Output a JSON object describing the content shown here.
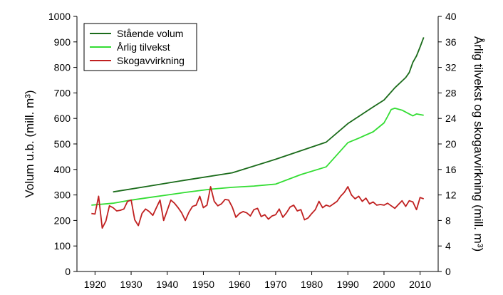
{
  "chart_data": {
    "type": "line",
    "title": "",
    "xlabel": "",
    "ylabel_left": "Volum u.b. (mill. m³)",
    "ylabel_right": "Årlig tilvekst og skogavvirkning (mill. m³)",
    "xlim": [
      1915,
      2015
    ],
    "ylim_left": [
      0,
      1000
    ],
    "ylim_right": [
      0,
      40
    ],
    "x_ticks": [
      1920,
      1930,
      1940,
      1950,
      1960,
      1970,
      1980,
      1990,
      2000,
      2010
    ],
    "y_ticks_left": [
      0,
      100,
      200,
      300,
      400,
      500,
      600,
      700,
      800,
      900,
      1000
    ],
    "y_ticks_right": [
      0,
      4,
      8,
      12,
      16,
      20,
      24,
      28,
      32,
      36,
      40
    ],
    "grid": false,
    "legend_position": "top-left",
    "series": [
      {
        "name": "Stående volum",
        "axis": "left",
        "color": "#1a6b1a",
        "points": [
          [
            1925,
            312
          ],
          [
            1935,
            335
          ],
          [
            1945,
            358
          ],
          [
            1958,
            387
          ],
          [
            1970,
            440
          ],
          [
            1984,
            507
          ],
          [
            1990,
            580
          ],
          [
            1997,
            645
          ],
          [
            2000,
            672
          ],
          [
            2003,
            720
          ],
          [
            2006,
            760
          ],
          [
            2007,
            780
          ],
          [
            2008,
            820
          ],
          [
            2009,
            845
          ],
          [
            2010,
            880
          ],
          [
            2011,
            918
          ]
        ]
      },
      {
        "name": "Årlig tilvekst",
        "axis": "right",
        "color": "#33dd33",
        "points": [
          [
            1919,
            10.4
          ],
          [
            1925,
            10.7
          ],
          [
            1930,
            11.2
          ],
          [
            1935,
            11.6
          ],
          [
            1940,
            12.0
          ],
          [
            1945,
            12.4
          ],
          [
            1952,
            12.9
          ],
          [
            1958,
            13.2
          ],
          [
            1964,
            13.4
          ],
          [
            1970,
            13.7
          ],
          [
            1977,
            15.2
          ],
          [
            1984,
            16.4
          ],
          [
            1990,
            20.2
          ],
          [
            1993,
            20.9
          ],
          [
            1997,
            21.9
          ],
          [
            2000,
            23.3
          ],
          [
            2001,
            24.3
          ],
          [
            2002,
            25.4
          ],
          [
            2003,
            25.6
          ],
          [
            2005,
            25.3
          ],
          [
            2007,
            24.7
          ],
          [
            2008,
            24.4
          ],
          [
            2009,
            24.7
          ],
          [
            2011,
            24.5
          ]
        ]
      },
      {
        "name": "Skogavvirkning",
        "axis": "right",
        "color": "#c02020",
        "points": [
          [
            1919,
            9.1
          ],
          [
            1920,
            9.0
          ],
          [
            1921,
            11.8
          ],
          [
            1922,
            6.8
          ],
          [
            1923,
            7.9
          ],
          [
            1924,
            10.3
          ],
          [
            1925,
            10.0
          ],
          [
            1926,
            9.5
          ],
          [
            1927,
            9.6
          ],
          [
            1928,
            9.8
          ],
          [
            1929,
            11.0
          ],
          [
            1930,
            11.2
          ],
          [
            1931,
            8.1
          ],
          [
            1932,
            7.2
          ],
          [
            1933,
            9.1
          ],
          [
            1934,
            9.8
          ],
          [
            1935,
            9.4
          ],
          [
            1936,
            8.8
          ],
          [
            1937,
            10.0
          ],
          [
            1938,
            11.2
          ],
          [
            1939,
            8.0
          ],
          [
            1940,
            9.6
          ],
          [
            1941,
            11.2
          ],
          [
            1942,
            10.7
          ],
          [
            1943,
            10.0
          ],
          [
            1944,
            9.2
          ],
          [
            1945,
            8.0
          ],
          [
            1946,
            9.3
          ],
          [
            1947,
            10.2
          ],
          [
            1948,
            10.4
          ],
          [
            1949,
            11.8
          ],
          [
            1950,
            10.0
          ],
          [
            1951,
            10.4
          ],
          [
            1952,
            13.3
          ],
          [
            1953,
            11.0
          ],
          [
            1954,
            10.3
          ],
          [
            1955,
            10.6
          ],
          [
            1956,
            11.3
          ],
          [
            1957,
            11.2
          ],
          [
            1958,
            10.1
          ],
          [
            1959,
            8.5
          ],
          [
            1960,
            9.1
          ],
          [
            1961,
            9.4
          ],
          [
            1962,
            9.2
          ],
          [
            1963,
            8.7
          ],
          [
            1964,
            9.7
          ],
          [
            1965,
            9.9
          ],
          [
            1966,
            8.6
          ],
          [
            1967,
            8.9
          ],
          [
            1968,
            8.2
          ],
          [
            1969,
            8.7
          ],
          [
            1970,
            8.9
          ],
          [
            1971,
            9.8
          ],
          [
            1972,
            8.5
          ],
          [
            1973,
            9.2
          ],
          [
            1974,
            10.1
          ],
          [
            1975,
            10.4
          ],
          [
            1976,
            9.5
          ],
          [
            1977,
            9.7
          ],
          [
            1978,
            8.1
          ],
          [
            1979,
            8.4
          ],
          [
            1980,
            9.1
          ],
          [
            1981,
            9.7
          ],
          [
            1982,
            11.0
          ],
          [
            1983,
            10.0
          ],
          [
            1984,
            10.4
          ],
          [
            1985,
            10.2
          ],
          [
            1986,
            10.6
          ],
          [
            1987,
            11.0
          ],
          [
            1988,
            11.8
          ],
          [
            1989,
            12.4
          ],
          [
            1990,
            13.3
          ],
          [
            1991,
            12.0
          ],
          [
            1992,
            11.4
          ],
          [
            1993,
            11.8
          ],
          [
            1994,
            11.0
          ],
          [
            1995,
            11.5
          ],
          [
            1996,
            10.6
          ],
          [
            1997,
            10.9
          ],
          [
            1998,
            10.4
          ],
          [
            1999,
            10.5
          ],
          [
            2000,
            10.4
          ],
          [
            2001,
            10.7
          ],
          [
            2002,
            10.3
          ],
          [
            2003,
            9.9
          ],
          [
            2004,
            10.5
          ],
          [
            2005,
            11.1
          ],
          [
            2006,
            10.2
          ],
          [
            2007,
            11.1
          ],
          [
            2008,
            10.9
          ],
          [
            2009,
            9.7
          ],
          [
            2010,
            11.6
          ],
          [
            2011,
            11.4
          ]
        ]
      }
    ]
  }
}
